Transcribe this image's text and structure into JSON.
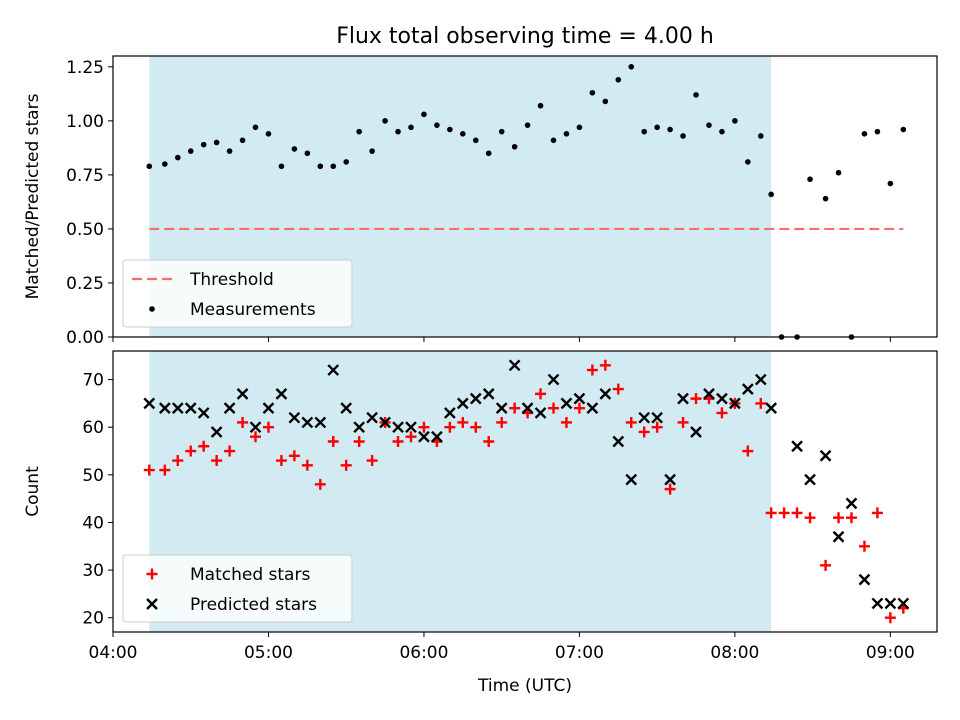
{
  "figure": {
    "title": "Flux total observing time = 4.00 h"
  },
  "colors": {
    "shade": "#add8e6",
    "threshold": "#ff6b6b",
    "measurement": "#000000",
    "matched": "#ff0000",
    "predicted": "#000000"
  },
  "chart_data": [
    {
      "type": "scatter",
      "ylabel": "Matched/Predicted stars",
      "ylim": [
        0,
        1.3
      ],
      "yticks": [
        "0.00",
        "0.25",
        "0.50",
        "0.75",
        "1.00",
        "1.25"
      ],
      "ytick_values": [
        0,
        0.25,
        0.5,
        0.75,
        1.0,
        1.25
      ],
      "shaded_span": [
        "04:14",
        "08:14"
      ],
      "threshold": {
        "name": "Threshold",
        "value": 0.5,
        "x_range": [
          "04:14",
          "09:05"
        ],
        "style": "dashed"
      },
      "legend": {
        "placement": "lower-left",
        "entries": [
          "Threshold",
          "Measurements"
        ]
      },
      "series": [
        {
          "name": "Measurements",
          "marker": "dot",
          "x": [
            "04:14",
            "04:20",
            "04:25",
            "04:30",
            "04:35",
            "04:40",
            "04:45",
            "04:50",
            "04:55",
            "05:00",
            "05:05",
            "05:10",
            "05:15",
            "05:20",
            "05:25",
            "05:30",
            "05:35",
            "05:40",
            "05:45",
            "05:50",
            "05:55",
            "06:00",
            "06:05",
            "06:10",
            "06:15",
            "06:20",
            "06:25",
            "06:30",
            "06:35",
            "06:40",
            "06:45",
            "06:50",
            "06:55",
            "07:00",
            "07:05",
            "07:10",
            "07:15",
            "07:20",
            "07:25",
            "07:30",
            "07:35",
            "07:40",
            "07:45",
            "07:50",
            "07:55",
            "08:00",
            "08:05",
            "08:10",
            "08:14",
            "08:18",
            "08:24",
            "08:29",
            "08:35",
            "08:40",
            "08:45",
            "08:50",
            "08:55",
            "09:00",
            "09:05"
          ],
          "y": [
            0.79,
            0.8,
            0.83,
            0.86,
            0.89,
            0.9,
            0.86,
            0.91,
            0.97,
            0.94,
            0.79,
            0.87,
            0.85,
            0.79,
            0.79,
            0.81,
            0.95,
            0.86,
            1.0,
            0.95,
            0.97,
            1.03,
            0.98,
            0.96,
            0.94,
            0.91,
            0.85,
            0.95,
            0.88,
            0.98,
            1.07,
            0.91,
            0.94,
            0.97,
            1.13,
            1.09,
            1.19,
            1.25,
            0.95,
            0.97,
            0.96,
            0.93,
            1.12,
            0.98,
            0.95,
            1.0,
            0.81,
            0.93,
            0.66,
            0.0,
            0.0,
            0.73,
            0.64,
            0.76,
            0.0,
            0.94,
            0.95,
            0.71,
            0.96
          ]
        }
      ],
      "xlim": [
        "04:00",
        "09:18"
      ]
    },
    {
      "type": "scatter",
      "ylabel": "Count",
      "xlabel": "Time (UTC)",
      "ylim": [
        17,
        76
      ],
      "yticks": [
        "20",
        "30",
        "40",
        "50",
        "60",
        "70"
      ],
      "ytick_values": [
        20,
        30,
        40,
        50,
        60,
        70
      ],
      "xticks": [
        "04:00",
        "05:00",
        "06:00",
        "07:00",
        "08:00",
        "09:00"
      ],
      "xlim": [
        "04:00",
        "09:18"
      ],
      "shaded_span": [
        "04:14",
        "08:14"
      ],
      "legend": {
        "placement": "lower-left",
        "entries": [
          "Matched stars",
          "Predicted stars"
        ]
      },
      "series": [
        {
          "name": "Matched stars",
          "marker": "plus",
          "x": [
            "04:14",
            "04:20",
            "04:25",
            "04:30",
            "04:35",
            "04:40",
            "04:45",
            "04:50",
            "04:55",
            "05:00",
            "05:05",
            "05:10",
            "05:15",
            "05:20",
            "05:25",
            "05:30",
            "05:35",
            "05:40",
            "05:45",
            "05:50",
            "05:55",
            "06:00",
            "06:05",
            "06:10",
            "06:15",
            "06:20",
            "06:25",
            "06:30",
            "06:35",
            "06:40",
            "06:45",
            "06:50",
            "06:55",
            "07:00",
            "07:05",
            "07:10",
            "07:15",
            "07:20",
            "07:25",
            "07:30",
            "07:35",
            "07:40",
            "07:45",
            "07:50",
            "07:55",
            "08:00",
            "08:05",
            "08:10",
            "08:14",
            "08:19",
            "08:24",
            "08:29",
            "08:35",
            "08:40",
            "08:45",
            "08:50",
            "08:55",
            "09:00",
            "09:05"
          ],
          "y": [
            51,
            51,
            53,
            55,
            56,
            53,
            55,
            61,
            58,
            60,
            53,
            54,
            52,
            48,
            57,
            52,
            57,
            53,
            61,
            57,
            58,
            60,
            57,
            60,
            61,
            60,
            57,
            61,
            64,
            63,
            67,
            64,
            61,
            64,
            72,
            73,
            68,
            61,
            59,
            60,
            47,
            61,
            66,
            66,
            63,
            65,
            55,
            65,
            42,
            42,
            42,
            41,
            31,
            41,
            41,
            35,
            42,
            20,
            22
          ]
        },
        {
          "name": "Predicted stars",
          "marker": "x",
          "x": [
            "04:14",
            "04:20",
            "04:25",
            "04:30",
            "04:35",
            "04:40",
            "04:45",
            "04:50",
            "04:55",
            "05:00",
            "05:05",
            "05:10",
            "05:15",
            "05:20",
            "05:25",
            "05:30",
            "05:35",
            "05:40",
            "05:45",
            "05:50",
            "05:55",
            "06:00",
            "06:05",
            "06:10",
            "06:15",
            "06:20",
            "06:25",
            "06:30",
            "06:35",
            "06:40",
            "06:45",
            "06:50",
            "06:55",
            "07:00",
            "07:05",
            "07:10",
            "07:15",
            "07:20",
            "07:25",
            "07:30",
            "07:35",
            "07:40",
            "07:45",
            "07:50",
            "07:55",
            "08:00",
            "08:05",
            "08:10",
            "08:14",
            "08:24",
            "08:29",
            "08:35",
            "08:40",
            "08:45",
            "08:50",
            "08:55",
            "09:00",
            "09:05"
          ],
          "y": [
            65,
            64,
            64,
            64,
            63,
            59,
            64,
            67,
            60,
            64,
            67,
            62,
            61,
            61,
            72,
            64,
            60,
            62,
            61,
            60,
            60,
            58,
            58,
            63,
            65,
            66,
            67,
            64,
            73,
            64,
            63,
            70,
            65,
            66,
            64,
            67,
            57,
            49,
            62,
            62,
            49,
            66,
            59,
            67,
            66,
            65,
            68,
            70,
            64,
            56,
            49,
            54,
            37,
            44,
            28,
            23,
            23,
            23
          ]
        }
      ]
    }
  ]
}
